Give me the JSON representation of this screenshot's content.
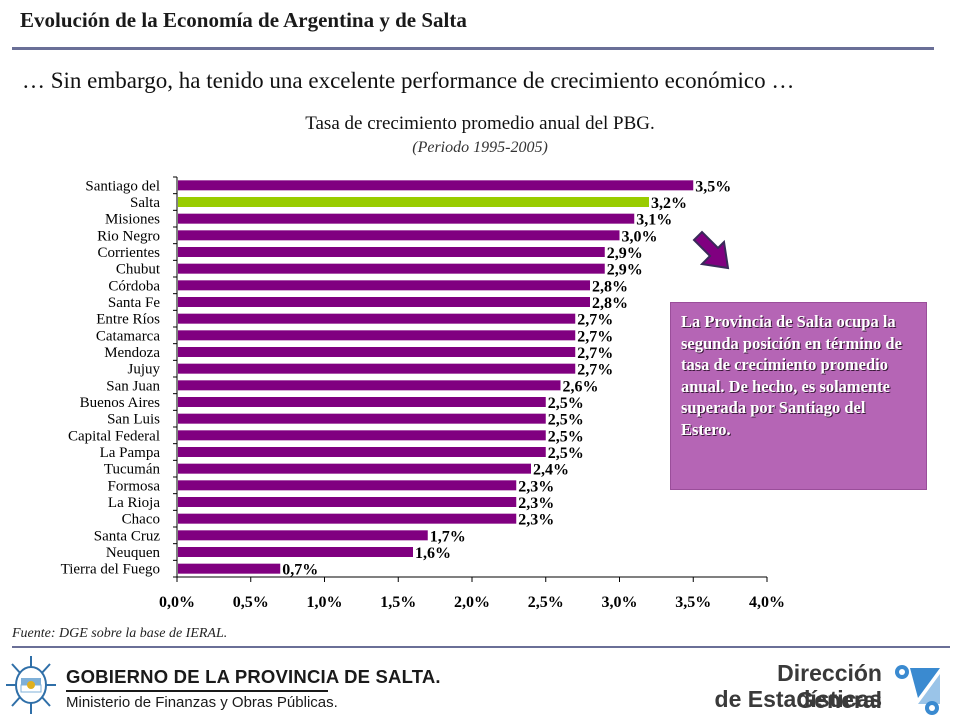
{
  "header": {
    "title": "Evolución de la Economía de Argentina y de Salta",
    "subtitle": "… Sin embargo, ha tenido una excelente performance de crecimiento económico …"
  },
  "chart_data": {
    "type": "bar",
    "orientation": "horizontal",
    "title": "Tasa de crecimiento promedio anual del PBG.",
    "subtitle": "(Periodo 1995-2005)",
    "categories": [
      "Santiago del",
      "Salta",
      "Misiones",
      "Rio Negro",
      "Corrientes",
      "Chubut",
      "Córdoba",
      "Santa Fe",
      "Entre Ríos",
      "Catamarca",
      "Mendoza",
      "Jujuy",
      "San Juan",
      "Buenos Aires",
      "San Luis",
      "Capital Federal",
      "La Pampa",
      "Tucumán",
      "Formosa",
      "La Rioja",
      "Chaco",
      "Santa Cruz",
      "Neuquen",
      "Tierra del Fuego"
    ],
    "values": [
      3.5,
      3.2,
      3.1,
      3.0,
      2.9,
      2.9,
      2.8,
      2.8,
      2.7,
      2.7,
      2.7,
      2.7,
      2.6,
      2.5,
      2.5,
      2.5,
      2.5,
      2.4,
      2.3,
      2.3,
      2.3,
      1.7,
      1.6,
      0.7
    ],
    "value_labels": [
      "3,5%",
      "3,2%",
      "3,1%",
      "3,0%",
      "2,9%",
      "2,9%",
      "2,8%",
      "2,8%",
      "2,7%",
      "2,7%",
      "2,7%",
      "2,7%",
      "2,6%",
      "2,5%",
      "2,5%",
      "2,5%",
      "2,5%",
      "2,4%",
      "2,3%",
      "2,3%",
      "2,3%",
      "1,7%",
      "1,6%",
      "0,7%"
    ],
    "highlight_index": 1,
    "xlim": [
      0,
      4.0
    ],
    "xticks": [
      0,
      0.5,
      1.0,
      1.5,
      2.0,
      2.5,
      3.0,
      3.5,
      4.0
    ],
    "xtick_labels": [
      "0,0%",
      "0,5%",
      "1,0%",
      "1,5%",
      "2,0%",
      "2,5%",
      "3,0%",
      "3,5%",
      "4,0%"
    ],
    "grid": false,
    "colors": {
      "bar": "#800080",
      "highlight": "#99cc00"
    }
  },
  "callout": {
    "text": "La Provincia de Salta ocupa la segunda posición en término de tasa de crecimiento promedio anual. De hecho, es solamente superada por Santiago del Estero.",
    "color": "#b565b5",
    "icon": "arrow-down-right-icon"
  },
  "source": "Fuente: DGE sobre la base de IERAL.",
  "footer": {
    "gov_line1": "GOBIERNO DE LA PROVINCIA DE SALTA.",
    "gov_line2": "Ministerio de Finanzas y Obras Públicas.",
    "dge_line1": "Dirección General",
    "dge_line2": "de Estadísticas",
    "rule_color": "#6a6f97"
  }
}
